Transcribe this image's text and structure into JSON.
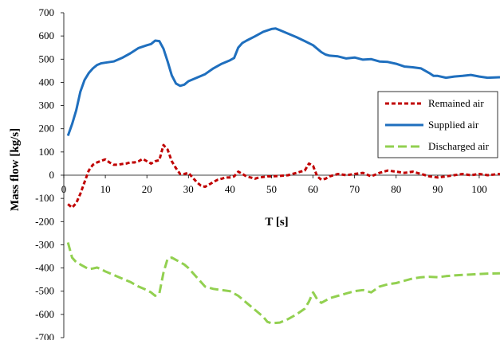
{
  "chart_data": {
    "type": "line",
    "title": "",
    "xlabel": "T [s]",
    "ylabel": "Mass flow [kg/s]",
    "xlim": [
      0,
      105
    ],
    "ylim": [
      -700,
      700
    ],
    "x_ticks": [
      0,
      10,
      20,
      30,
      40,
      50,
      60,
      70,
      80,
      90,
      100
    ],
    "y_ticks": [
      -700,
      -600,
      -500,
      -400,
      -300,
      -200,
      -100,
      0,
      100,
      200,
      300,
      400,
      500,
      600,
      700
    ],
    "grid": false,
    "legend_position": "right",
    "series": [
      {
        "name": "Remained air",
        "color": "#c00000",
        "style": "dotted",
        "points": [
          [
            1,
            -125
          ],
          [
            2,
            -140
          ],
          [
            3,
            -120
          ],
          [
            4,
            -80
          ],
          [
            5,
            -30
          ],
          [
            6,
            20
          ],
          [
            7,
            45
          ],
          [
            8,
            55
          ],
          [
            9,
            62
          ],
          [
            10,
            68
          ],
          [
            11,
            55
          ],
          [
            12,
            45
          ],
          [
            13,
            45
          ],
          [
            14,
            48
          ],
          [
            15,
            50
          ],
          [
            16,
            55
          ],
          [
            17,
            55
          ],
          [
            18,
            60
          ],
          [
            19,
            70
          ],
          [
            20,
            60
          ],
          [
            21,
            50
          ],
          [
            22,
            60
          ],
          [
            23,
            65
          ],
          [
            24,
            130
          ],
          [
            25,
            110
          ],
          [
            26,
            60
          ],
          [
            27,
            30
          ],
          [
            28,
            5
          ],
          [
            29,
            5
          ],
          [
            30,
            10
          ],
          [
            31,
            -10
          ],
          [
            32,
            -30
          ],
          [
            33,
            -45
          ],
          [
            34,
            -50
          ],
          [
            35,
            -40
          ],
          [
            36,
            -30
          ],
          [
            37,
            -20
          ],
          [
            38,
            -15
          ],
          [
            39,
            -10
          ],
          [
            40,
            -10
          ],
          [
            41,
            -5
          ],
          [
            42,
            15
          ],
          [
            43,
            5
          ],
          [
            44,
            -5
          ],
          [
            45,
            -10
          ],
          [
            46,
            -15
          ],
          [
            47,
            -10
          ],
          [
            48,
            -8
          ],
          [
            49,
            -5
          ],
          [
            50,
            -5
          ],
          [
            52,
            -3
          ],
          [
            54,
            0
          ],
          [
            56,
            10
          ],
          [
            57,
            15
          ],
          [
            58,
            20
          ],
          [
            59,
            50
          ],
          [
            60,
            40
          ],
          [
            61,
            -5
          ],
          [
            62,
            -20
          ],
          [
            63,
            -15
          ],
          [
            64,
            -5
          ],
          [
            66,
            5
          ],
          [
            68,
            0
          ],
          [
            70,
            5
          ],
          [
            72,
            10
          ],
          [
            74,
            -5
          ],
          [
            76,
            10
          ],
          [
            78,
            20
          ],
          [
            80,
            15
          ],
          [
            82,
            10
          ],
          [
            84,
            15
          ],
          [
            86,
            5
          ],
          [
            88,
            -5
          ],
          [
            90,
            -10
          ],
          [
            92,
            -5
          ],
          [
            94,
            0
          ],
          [
            96,
            5
          ],
          [
            98,
            0
          ],
          [
            100,
            5
          ],
          [
            102,
            0
          ],
          [
            105,
            5
          ]
        ]
      },
      {
        "name": "Supplied air",
        "color": "#1f6fbe",
        "style": "solid",
        "points": [
          [
            1,
            170
          ],
          [
            2,
            220
          ],
          [
            3,
            280
          ],
          [
            4,
            360
          ],
          [
            5,
            410
          ],
          [
            6,
            440
          ],
          [
            7,
            460
          ],
          [
            8,
            475
          ],
          [
            9,
            482
          ],
          [
            10,
            485
          ],
          [
            12,
            490
          ],
          [
            14,
            505
          ],
          [
            16,
            525
          ],
          [
            18,
            548
          ],
          [
            20,
            560
          ],
          [
            21,
            565
          ],
          [
            22,
            580
          ],
          [
            23,
            578
          ],
          [
            24,
            545
          ],
          [
            25,
            490
          ],
          [
            26,
            430
          ],
          [
            27,
            395
          ],
          [
            28,
            385
          ],
          [
            29,
            390
          ],
          [
            30,
            405
          ],
          [
            32,
            420
          ],
          [
            34,
            435
          ],
          [
            36,
            460
          ],
          [
            38,
            480
          ],
          [
            40,
            495
          ],
          [
            41,
            505
          ],
          [
            42,
            550
          ],
          [
            43,
            570
          ],
          [
            44,
            580
          ],
          [
            46,
            598
          ],
          [
            48,
            618
          ],
          [
            50,
            630
          ],
          [
            51,
            632
          ],
          [
            52,
            625
          ],
          [
            54,
            610
          ],
          [
            56,
            595
          ],
          [
            58,
            578
          ],
          [
            60,
            560
          ],
          [
            61,
            545
          ],
          [
            62,
            530
          ],
          [
            63,
            520
          ],
          [
            64,
            515
          ],
          [
            66,
            512
          ],
          [
            68,
            503
          ],
          [
            70,
            507
          ],
          [
            72,
            498
          ],
          [
            74,
            500
          ],
          [
            76,
            490
          ],
          [
            78,
            488
          ],
          [
            80,
            480
          ],
          [
            82,
            468
          ],
          [
            84,
            465
          ],
          [
            86,
            460
          ],
          [
            88,
            440
          ],
          [
            89,
            428
          ],
          [
            90,
            428
          ],
          [
            92,
            420
          ],
          [
            94,
            425
          ],
          [
            96,
            428
          ],
          [
            98,
            432
          ],
          [
            100,
            425
          ],
          [
            102,
            420
          ],
          [
            105,
            422
          ]
        ]
      },
      {
        "name": "Discharged air",
        "color": "#92d050",
        "style": "dashed",
        "points": [
          [
            1,
            -290
          ],
          [
            2,
            -355
          ],
          [
            3,
            -375
          ],
          [
            4,
            -385
          ],
          [
            5,
            -395
          ],
          [
            6,
            -405
          ],
          [
            7,
            -402
          ],
          [
            8,
            -398
          ],
          [
            9,
            -405
          ],
          [
            10,
            -415
          ],
          [
            12,
            -430
          ],
          [
            14,
            -445
          ],
          [
            16,
            -460
          ],
          [
            18,
            -480
          ],
          [
            20,
            -495
          ],
          [
            21,
            -505
          ],
          [
            22,
            -520
          ],
          [
            23,
            -510
          ],
          [
            24,
            -420
          ],
          [
            25,
            -360
          ],
          [
            26,
            -355
          ],
          [
            27,
            -365
          ],
          [
            28,
            -375
          ],
          [
            29,
            -385
          ],
          [
            30,
            -400
          ],
          [
            32,
            -440
          ],
          [
            34,
            -480
          ],
          [
            36,
            -490
          ],
          [
            38,
            -495
          ],
          [
            40,
            -500
          ],
          [
            42,
            -520
          ],
          [
            44,
            -550
          ],
          [
            46,
            -580
          ],
          [
            48,
            -610
          ],
          [
            49,
            -632
          ],
          [
            50,
            -638
          ],
          [
            52,
            -635
          ],
          [
            54,
            -620
          ],
          [
            56,
            -600
          ],
          [
            58,
            -575
          ],
          [
            59,
            -545
          ],
          [
            60,
            -505
          ],
          [
            61,
            -535
          ],
          [
            62,
            -550
          ],
          [
            64,
            -530
          ],
          [
            66,
            -520
          ],
          [
            68,
            -510
          ],
          [
            70,
            -500
          ],
          [
            72,
            -495
          ],
          [
            74,
            -505
          ],
          [
            76,
            -480
          ],
          [
            78,
            -470
          ],
          [
            80,
            -465
          ],
          [
            82,
            -455
          ],
          [
            84,
            -445
          ],
          [
            86,
            -440
          ],
          [
            88,
            -438
          ],
          [
            90,
            -440
          ],
          [
            92,
            -435
          ],
          [
            94,
            -432
          ],
          [
            96,
            -430
          ],
          [
            98,
            -428
          ],
          [
            100,
            -426
          ],
          [
            102,
            -424
          ],
          [
            105,
            -423
          ]
        ]
      }
    ]
  }
}
